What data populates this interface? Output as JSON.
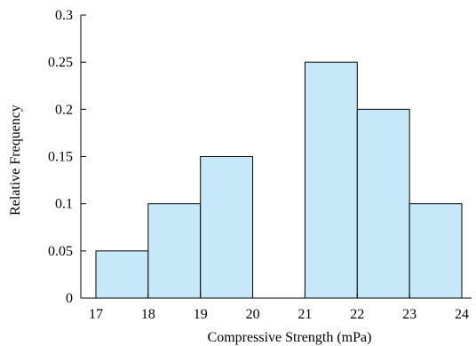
{
  "chart_data": {
    "type": "bar",
    "title": "",
    "xlabel": "Compressive Strength (mPa)",
    "ylabel": "Relative Frequency",
    "bins": [
      {
        "start": 17,
        "end": 18,
        "value": 0.05
      },
      {
        "start": 18,
        "end": 19,
        "value": 0.1
      },
      {
        "start": 19,
        "end": 20,
        "value": 0.15
      },
      {
        "start": 20,
        "end": 21,
        "value": 0.0
      },
      {
        "start": 21,
        "end": 22,
        "value": 0.25
      },
      {
        "start": 22,
        "end": 23,
        "value": 0.2
      },
      {
        "start": 23,
        "end": 24,
        "value": 0.1
      }
    ],
    "xlim": [
      17,
      24
    ],
    "ylim": [
      0,
      0.3
    ],
    "xticks": [
      "17",
      "18",
      "19",
      "20",
      "21",
      "22",
      "23",
      "24"
    ],
    "yticks": [
      "0",
      "0.05",
      "0.1",
      "0.15",
      "0.2",
      "0.25",
      "0.3"
    ],
    "bar_color": "#c6e8f8",
    "grid": false
  }
}
